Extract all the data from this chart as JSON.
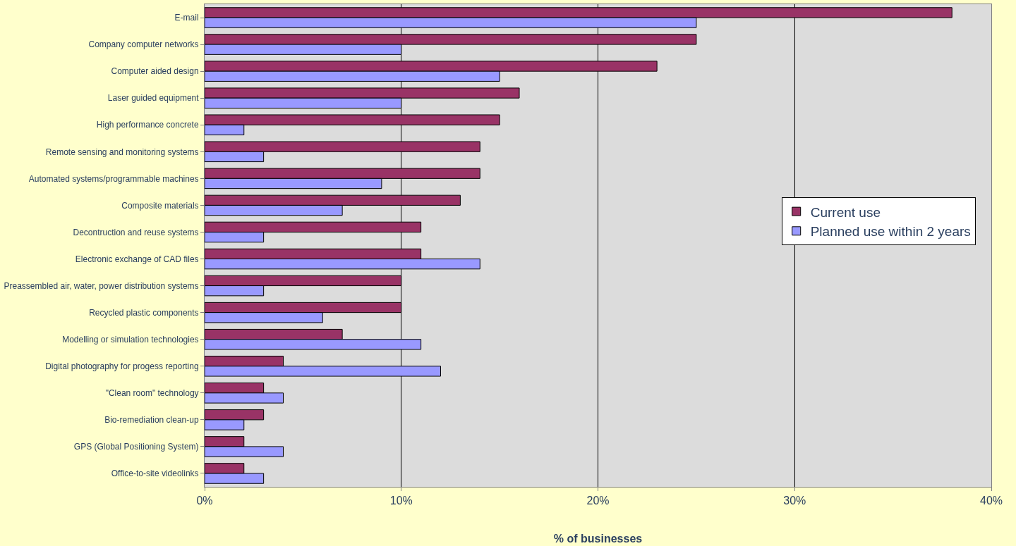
{
  "chart_data": {
    "type": "bar",
    "orientation": "horizontal",
    "xlabel": "% of businesses",
    "categories": [
      "E-mail",
      "Company computer networks",
      "Computer aided design",
      "Laser guided equipment",
      "High performance concrete",
      "Remote sensing and monitoring systems",
      "Automated systems/programmable machines",
      "Composite materials",
      "Decontruction and reuse systems",
      "Electronic exchange of CAD files",
      "Preassembled air, water, power distribution systems",
      "Recycled plastic components",
      "Modelling or simulation technologies",
      "Digital photography for progess reporting",
      "\"Clean room\" technology",
      "Bio-remediation clean-up",
      "GPS (Global Positioning System)",
      "Office-to-site videolinks"
    ],
    "series": [
      {
        "name": "Current use",
        "color": "#993366",
        "values": [
          38,
          25,
          23,
          16,
          15,
          14,
          14,
          13,
          11,
          11,
          10,
          10,
          7,
          4,
          3,
          3,
          2,
          2
        ]
      },
      {
        "name": "Planned use within 2 years",
        "color": "#9999ff",
        "values": [
          25,
          10,
          15,
          10,
          2,
          3,
          9,
          7,
          3,
          14,
          3,
          6,
          11,
          12,
          4,
          2,
          4,
          3
        ]
      }
    ],
    "xlim": [
      0,
      40
    ],
    "xticks": [
      {
        "value": 0,
        "label": "0%"
      },
      {
        "value": 10,
        "label": "10%"
      },
      {
        "value": 20,
        "label": "20%"
      },
      {
        "value": 30,
        "label": "30%"
      },
      {
        "value": 40,
        "label": "40%"
      }
    ],
    "grid": "x",
    "legend": "right"
  }
}
